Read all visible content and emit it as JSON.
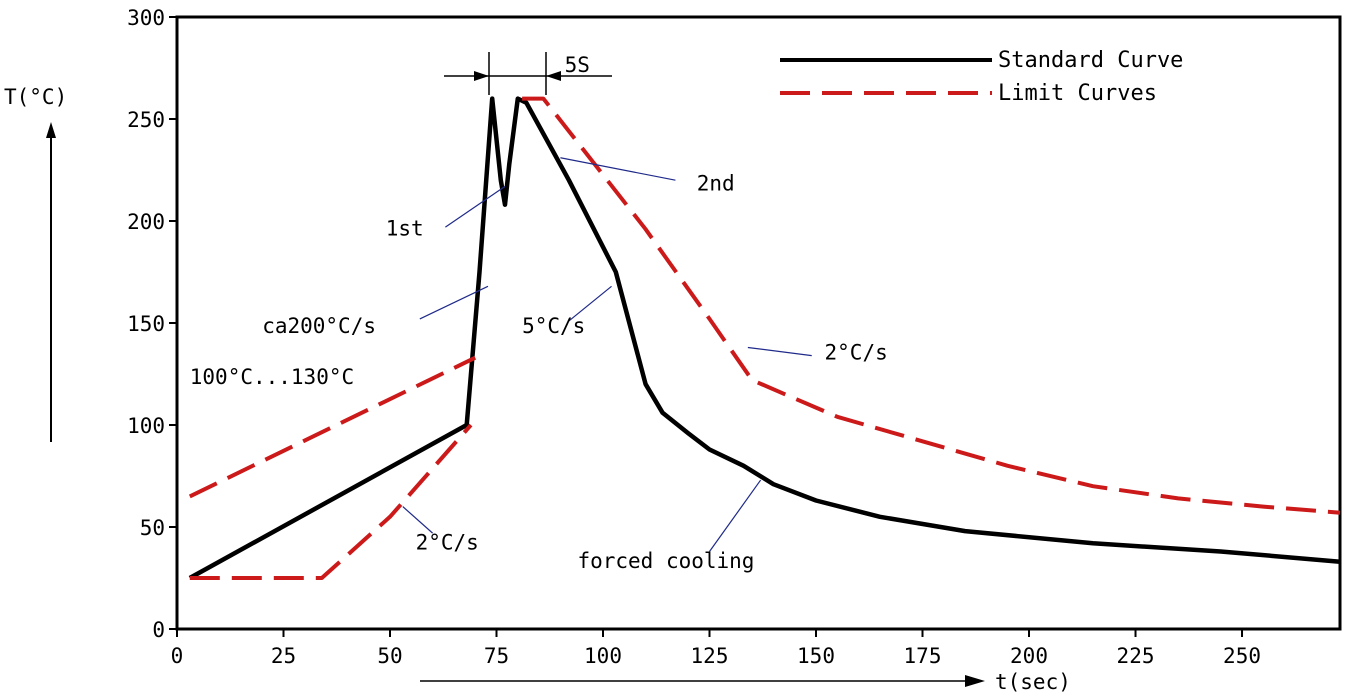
{
  "chart_data": {
    "type": "line",
    "xlabel": "t(sec)",
    "ylabel": "T(°C)",
    "xlim": [
      0,
      273
    ],
    "ylim": [
      0,
      300
    ],
    "x_ticks": [
      0,
      25,
      50,
      75,
      100,
      125,
      150,
      175,
      200,
      225,
      250
    ],
    "y_ticks": [
      0,
      50,
      100,
      150,
      200,
      250,
      300
    ],
    "legend_position": "top-right",
    "series": [
      {
        "name": "Standard Curve",
        "color": "#000000",
        "style": "solid",
        "points": [
          [
            3,
            25
          ],
          [
            68,
            100
          ],
          [
            71,
            175
          ],
          [
            74,
            260
          ],
          [
            76,
            220
          ],
          [
            77,
            208
          ],
          [
            78,
            228
          ],
          [
            80,
            260
          ],
          [
            82,
            258
          ],
          [
            92,
            220
          ],
          [
            103,
            175
          ],
          [
            110,
            120
          ],
          [
            114,
            106
          ],
          [
            120,
            96
          ],
          [
            125,
            88
          ],
          [
            133,
            80
          ],
          [
            140,
            71
          ],
          [
            150,
            63
          ],
          [
            165,
            55
          ],
          [
            185,
            48
          ],
          [
            215,
            42
          ],
          [
            245,
            38
          ],
          [
            273,
            33
          ]
        ]
      },
      {
        "name": "Limit Curves",
        "color": "#cc1a1a",
        "style": "dashed",
        "points": [
          [
            3,
            65
          ],
          [
            70,
            133
          ]
        ]
      },
      {
        "name": "Limit Curves",
        "color": "#cc1a1a",
        "style": "dashed",
        "points": [
          [
            3,
            25
          ],
          [
            34,
            25
          ],
          [
            50,
            55
          ],
          [
            69,
            100
          ]
        ]
      },
      {
        "name": "Limit Curves",
        "color": "#cc1a1a",
        "style": "dashed",
        "points": [
          [
            81,
            260
          ],
          [
            86,
            260
          ],
          [
            110,
            196
          ],
          [
            125,
            152
          ],
          [
            135,
            122
          ],
          [
            155,
            104
          ],
          [
            175,
            92
          ],
          [
            195,
            80
          ],
          [
            215,
            70
          ],
          [
            235,
            64
          ],
          [
            255,
            60
          ],
          [
            273,
            57
          ]
        ]
      }
    ],
    "annotations": [
      {
        "id": "five-s",
        "text": "5S",
        "at": [
          91,
          273
        ]
      },
      {
        "id": "first",
        "text": "1st",
        "at": [
          49,
          193
        ],
        "pointer": [
          [
            63,
            197
          ],
          [
            77,
            217
          ]
        ]
      },
      {
        "id": "second",
        "text": "2nd",
        "at": [
          122,
          215
        ],
        "pointer": [
          [
            117,
            220
          ],
          [
            90,
            231
          ]
        ]
      },
      {
        "id": "rate-200",
        "text": "ca200°C/s",
        "at": [
          20,
          145
        ],
        "pointer": [
          [
            57,
            152
          ],
          [
            73,
            168
          ]
        ]
      },
      {
        "id": "rate-5",
        "text": "5°C/s",
        "at": [
          81,
          145
        ],
        "pointer": [
          [
            92,
            151
          ],
          [
            102,
            168
          ]
        ]
      },
      {
        "id": "rate-2-upper",
        "text": "2°C/s",
        "at": [
          152,
          132
        ],
        "pointer": [
          [
            149,
            134
          ],
          [
            134,
            138
          ]
        ]
      },
      {
        "id": "preheat-range",
        "text": "100°C...130°C",
        "at": [
          3,
          120
        ]
      },
      {
        "id": "rate-2-lower",
        "text": "2°C/s",
        "at": [
          56,
          39
        ],
        "pointer": [
          [
            60,
            47
          ],
          [
            53,
            60
          ]
        ]
      },
      {
        "id": "forced-cooling",
        "text": "forced cooling",
        "at": [
          94,
          30
        ],
        "pointer": [
          [
            125,
            38
          ],
          [
            137,
            73
          ]
        ]
      }
    ]
  }
}
